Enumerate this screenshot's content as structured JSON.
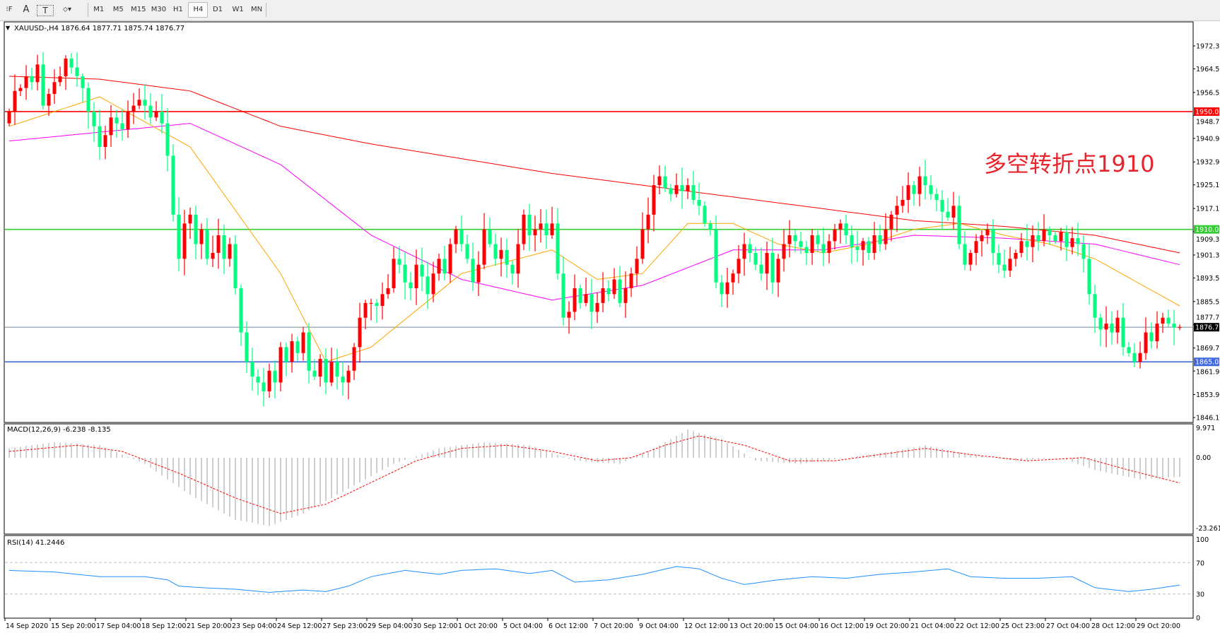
{
  "toolbar": {
    "tools": [
      {
        "name": "fibo-tool-icon",
        "glyph": "⁝F"
      },
      {
        "name": "text-tool-icon",
        "glyph": "A"
      },
      {
        "name": "text-label-tool-icon",
        "glyph": "T"
      },
      {
        "name": "arrows-tool-icon",
        "glyph": "⬦▾"
      }
    ],
    "timeframes": [
      "M1",
      "M5",
      "M15",
      "M30",
      "H1",
      "H4",
      "D1",
      "W1",
      "MN"
    ],
    "active_timeframe": "H4"
  },
  "chart_data": {
    "type": "candlestick",
    "symbol_header": "XAUUSD-,H4  1876.64 1877.71 1875.74 1876.77",
    "ohlc_last": {
      "open": 1876.64,
      "high": 1877.71,
      "low": 1875.74,
      "close": 1876.77
    },
    "colors": {
      "up": "#ff0000",
      "down": "#00ff7f",
      "ma_fast": "#ffa500",
      "ma_mid": "#ff00ff",
      "ma_slow": "#ff0000"
    },
    "closes": [
      1950,
      1957,
      1958,
      1962,
      1960,
      1966,
      1952,
      1956,
      1960,
      1962,
      1968,
      1965,
      1962,
      1958,
      1950,
      1945,
      1938,
      1942,
      1948,
      1946,
      1944,
      1950,
      1952,
      1954,
      1952,
      1948,
      1950,
      1946,
      1935,
      1915,
      1900,
      1912,
      1915,
      1905,
      1910,
      1900,
      1902,
      1908,
      1900,
      1905,
      1890,
      1875,
      1865,
      1860,
      1858,
      1855,
      1862,
      1858,
      1870,
      1865,
      1872,
      1868,
      1875,
      1862,
      1860,
      1866,
      1858,
      1865,
      1860,
      1858,
      1862,
      1870,
      1880,
      1885,
      1885,
      1884,
      1888,
      1890,
      1900,
      1898,
      1892,
      1890,
      1898,
      1894,
      1888,
      1895,
      1900,
      1895,
      1905,
      1910,
      1905,
      1900,
      1892,
      1898,
      1910,
      1905,
      1900,
      1903,
      1898,
      1895,
      1905,
      1915,
      1908,
      1910,
      1912,
      1908,
      1912,
      1895,
      1880,
      1882,
      1890,
      1885,
      1888,
      1882,
      1885,
      1890,
      1888,
      1893,
      1885,
      1890,
      1895,
      1900,
      1910,
      1915,
      1925,
      1928,
      1924,
      1922,
      1925,
      1923,
      1925,
      1920,
      1918,
      1912,
      1910,
      1892,
      1888,
      1892,
      1895,
      1900,
      1905,
      1902,
      1898,
      1895,
      1902,
      1892,
      1900,
      1905,
      1908,
      1906,
      1904,
      1902,
      1908,
      1905,
      1902,
      1906,
      1910,
      1912,
      1908,
      1904,
      1903,
      1906,
      1902,
      1908,
      1905,
      1910,
      1915,
      1918,
      1920,
      1925,
      1922,
      1928,
      1925,
      1922,
      1920,
      1916,
      1914,
      1918,
      1905,
      1898,
      1902,
      1906,
      1908,
      1910,
      1902,
      1898,
      1896,
      1900,
      1902,
      1906,
      1904,
      1908,
      1906,
      1910,
      1908,
      1906,
      1909,
      1904,
      1907,
      1905,
      1900,
      1888,
      1880,
      1876,
      1878,
      1875,
      1880,
      1870,
      1868,
      1865,
      1868,
      1875,
      1872,
      1878,
      1880,
      1878,
      1876.64,
      1876.77
    ],
    "moving_averages": {
      "slow_red": [
        [
          0,
          1962
        ],
        [
          16,
          1961
        ],
        [
          32,
          1957
        ],
        [
          48,
          1945
        ],
        [
          64,
          1939
        ],
        [
          80,
          1934
        ],
        [
          96,
          1929
        ],
        [
          112,
          1925
        ],
        [
          128,
          1921
        ],
        [
          144,
          1917
        ],
        [
          160,
          1913
        ],
        [
          176,
          1911
        ],
        [
          192,
          1908
        ],
        [
          207,
          1902
        ]
      ],
      "mid_magenta": [
        [
          0,
          1940
        ],
        [
          16,
          1943
        ],
        [
          32,
          1946
        ],
        [
          48,
          1932
        ],
        [
          64,
          1908
        ],
        [
          80,
          1893
        ],
        [
          96,
          1886
        ],
        [
          112,
          1891
        ],
        [
          128,
          1903
        ],
        [
          144,
          1903
        ],
        [
          160,
          1908
        ],
        [
          176,
          1907
        ],
        [
          192,
          1905
        ],
        [
          207,
          1898
        ]
      ],
      "fast_orange": [
        [
          0,
          1945
        ],
        [
          16,
          1955
        ],
        [
          32,
          1938
        ],
        [
          48,
          1895
        ],
        [
          56,
          1865
        ],
        [
          64,
          1870
        ],
        [
          80,
          1895
        ],
        [
          96,
          1903
        ],
        [
          104,
          1893
        ],
        [
          112,
          1895
        ],
        [
          120,
          1912
        ],
        [
          128,
          1912
        ],
        [
          136,
          1905
        ],
        [
          144,
          1902
        ],
        [
          152,
          1905
        ],
        [
          160,
          1910
        ],
        [
          168,
          1912
        ],
        [
          176,
          1908
        ],
        [
          184,
          1905
        ],
        [
          192,
          1900
        ],
        [
          207,
          1884
        ]
      ]
    },
    "horizontal_lines": [
      {
        "price": 1950.0,
        "label": "1950.00",
        "color": "#ff0000"
      },
      {
        "price": 1910.0,
        "label": "1910.00",
        "color": "#33cc33"
      },
      {
        "price": 1865.0,
        "label": "1865.00",
        "color": "#4169e1"
      },
      {
        "price": 1876.77,
        "label": "1876.77",
        "color": "#778899",
        "current": true
      }
    ],
    "annotation": {
      "text": "多空转折点1910",
      "color": "#e8242c"
    },
    "price_axis": {
      "ylim": [
        1846.1,
        1972.3
      ],
      "ticks": [
        "1972.30",
        "1964.50",
        "1956.50",
        "1948.70",
        "1940.90",
        "1932.90",
        "1925.10",
        "1917.10",
        "1909.30",
        "1901.30",
        "1893.50",
        "1885.50",
        "1877.70",
        "1869.70",
        "1861.90",
        "1853.90",
        "1846.10"
      ]
    },
    "time_axis": {
      "ticks": [
        "14 Sep 2020",
        "15 Sep 20:00",
        "17 Sep 04:00",
        "18 Sep 12:00",
        "21 Sep 20:00",
        "23 Sep 04:00",
        "24 Sep 12:00",
        "27 Sep 23:00",
        "29 Sep 04:00",
        "30 Sep 12:00",
        "1 Oct 20:00",
        "5 Oct 04:00",
        "6 Oct 12:00",
        "7 Oct 20:00",
        "9 Oct 04:00",
        "12 Oct 12:00",
        "13 Oct 20:00",
        "15 Oct 04:00",
        "16 Oct 12:00",
        "19 Oct 20:00",
        "21 Oct 04:00",
        "22 Oct 12:00",
        "25 Oct 23:00",
        "27 Oct 04:00",
        "28 Oct 12:00",
        "29 Oct 20:00"
      ],
      "bars_per_tick": 8
    },
    "macd": {
      "label": "MACD(12,26,9) -6.238 -8.135",
      "ylim": [
        -23.261,
        9.971
      ],
      "ticks": [
        "9.971",
        "0.00",
        "-23.261"
      ],
      "main": [
        [
          0,
          3
        ],
        [
          8,
          5
        ],
        [
          16,
          4
        ],
        [
          24,
          -2
        ],
        [
          32,
          -12
        ],
        [
          40,
          -20
        ],
        [
          46,
          -22
        ],
        [
          52,
          -18
        ],
        [
          60,
          -10
        ],
        [
          68,
          -2
        ],
        [
          76,
          3
        ],
        [
          84,
          5
        ],
        [
          92,
          4
        ],
        [
          100,
          -1
        ],
        [
          108,
          -2
        ],
        [
          114,
          3
        ],
        [
          120,
          9
        ],
        [
          126,
          6
        ],
        [
          132,
          -1
        ],
        [
          140,
          -2
        ],
        [
          148,
          0
        ],
        [
          156,
          2
        ],
        [
          162,
          4
        ],
        [
          170,
          1
        ],
        [
          178,
          -1
        ],
        [
          186,
          0
        ],
        [
          192,
          -4
        ],
        [
          200,
          -7
        ],
        [
          207,
          -6.238
        ]
      ],
      "signal": [
        [
          0,
          2
        ],
        [
          12,
          4
        ],
        [
          20,
          2
        ],
        [
          30,
          -5
        ],
        [
          40,
          -13
        ],
        [
          48,
          -18
        ],
        [
          56,
          -15
        ],
        [
          64,
          -8
        ],
        [
          72,
          -1
        ],
        [
          80,
          3
        ],
        [
          88,
          4
        ],
        [
          96,
          2
        ],
        [
          104,
          -1
        ],
        [
          110,
          0
        ],
        [
          116,
          4
        ],
        [
          122,
          7
        ],
        [
          130,
          4
        ],
        [
          138,
          -1
        ],
        [
          146,
          -1
        ],
        [
          154,
          1
        ],
        [
          162,
          3
        ],
        [
          170,
          1
        ],
        [
          180,
          -1
        ],
        [
          190,
          0
        ],
        [
          198,
          -4
        ],
        [
          207,
          -8.135
        ]
      ]
    },
    "rsi": {
      "label": "RSI(14) 41.2446",
      "ylim": [
        0,
        100
      ],
      "ticks": [
        "100",
        "70",
        "30",
        "0"
      ],
      "levels": [
        70,
        30
      ],
      "values": [
        [
          0,
          60
        ],
        [
          8,
          58
        ],
        [
          16,
          52
        ],
        [
          24,
          52
        ],
        [
          28,
          48
        ],
        [
          30,
          40
        ],
        [
          34,
          38
        ],
        [
          40,
          36
        ],
        [
          46,
          32
        ],
        [
          52,
          35
        ],
        [
          56,
          33
        ],
        [
          60,
          40
        ],
        [
          64,
          52
        ],
        [
          70,
          60
        ],
        [
          76,
          55
        ],
        [
          80,
          60
        ],
        [
          86,
          62
        ],
        [
          92,
          56
        ],
        [
          96,
          60
        ],
        [
          100,
          45
        ],
        [
          106,
          48
        ],
        [
          112,
          55
        ],
        [
          118,
          65
        ],
        [
          122,
          62
        ],
        [
          126,
          50
        ],
        [
          130,
          42
        ],
        [
          136,
          48
        ],
        [
          142,
          52
        ],
        [
          148,
          50
        ],
        [
          154,
          55
        ],
        [
          160,
          58
        ],
        [
          166,
          62
        ],
        [
          170,
          52
        ],
        [
          176,
          50
        ],
        [
          182,
          50
        ],
        [
          188,
          52
        ],
        [
          192,
          38
        ],
        [
          198,
          33
        ],
        [
          202,
          36
        ],
        [
          207,
          41.2446
        ]
      ]
    }
  }
}
